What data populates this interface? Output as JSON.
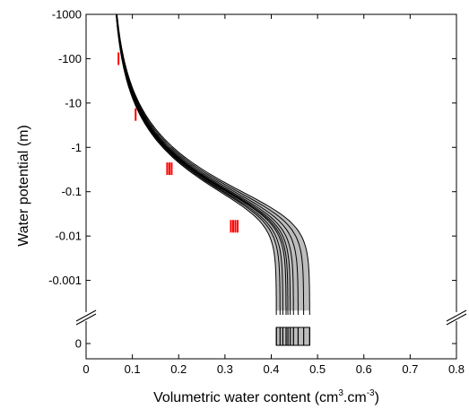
{
  "chart_data": {
    "type": "line",
    "xlabel": "Volumetric water content (cm",
    "xlabel_sup1": "3",
    "xlabel_mid": ".cm",
    "xlabel_sup2": "-3",
    "xlabel_end": ")",
    "ylabel": "Water potential (m)",
    "xlim": [
      0,
      0.8
    ],
    "x_ticks": [
      "0",
      "0.1",
      "0.2",
      "0.3",
      "0.4",
      "0.5",
      "0.6",
      "0.7",
      "0.8"
    ],
    "y_scale": "log (negative water potential), with axis break and separate 0 row",
    "y_ticks": [
      {
        "label": "-1000",
        "value": -1000
      },
      {
        "label": "-100",
        "value": -100
      },
      {
        "label": "-10",
        "value": -10
      },
      {
        "label": "-1",
        "value": -1
      },
      {
        "label": "-0.1",
        "value": -0.1
      },
      {
        "label": "-0.01",
        "value": -0.01
      },
      {
        "label": "-0.001",
        "value": -0.001
      },
      {
        "label": "0",
        "value": 0
      }
    ],
    "grid": false,
    "legend": "none",
    "colors": {
      "curve": "#000000",
      "band": "#bdbdbd",
      "measurements": "#ff0000"
    },
    "series": [
      {
        "theta_s": 0.411
      },
      {
        "theta_s": 0.419
      },
      {
        "theta_s": 0.425
      },
      {
        "theta_s": 0.432
      },
      {
        "theta_s": 0.436
      },
      {
        "theta_s": 0.441
      },
      {
        "theta_s": 0.448
      },
      {
        "theta_s": 0.458
      },
      {
        "theta_s": 0.47
      },
      {
        "theta_s": 0.483
      }
    ],
    "measurements": [
      {
        "x": 0.07,
        "y": -100,
        "n": 1
      },
      {
        "x": 0.107,
        "y": -5.5,
        "n": 1
      },
      {
        "x": 0.18,
        "y": -0.33,
        "n": 3
      },
      {
        "x": 0.32,
        "y": -0.0166,
        "n": 4
      }
    ]
  }
}
